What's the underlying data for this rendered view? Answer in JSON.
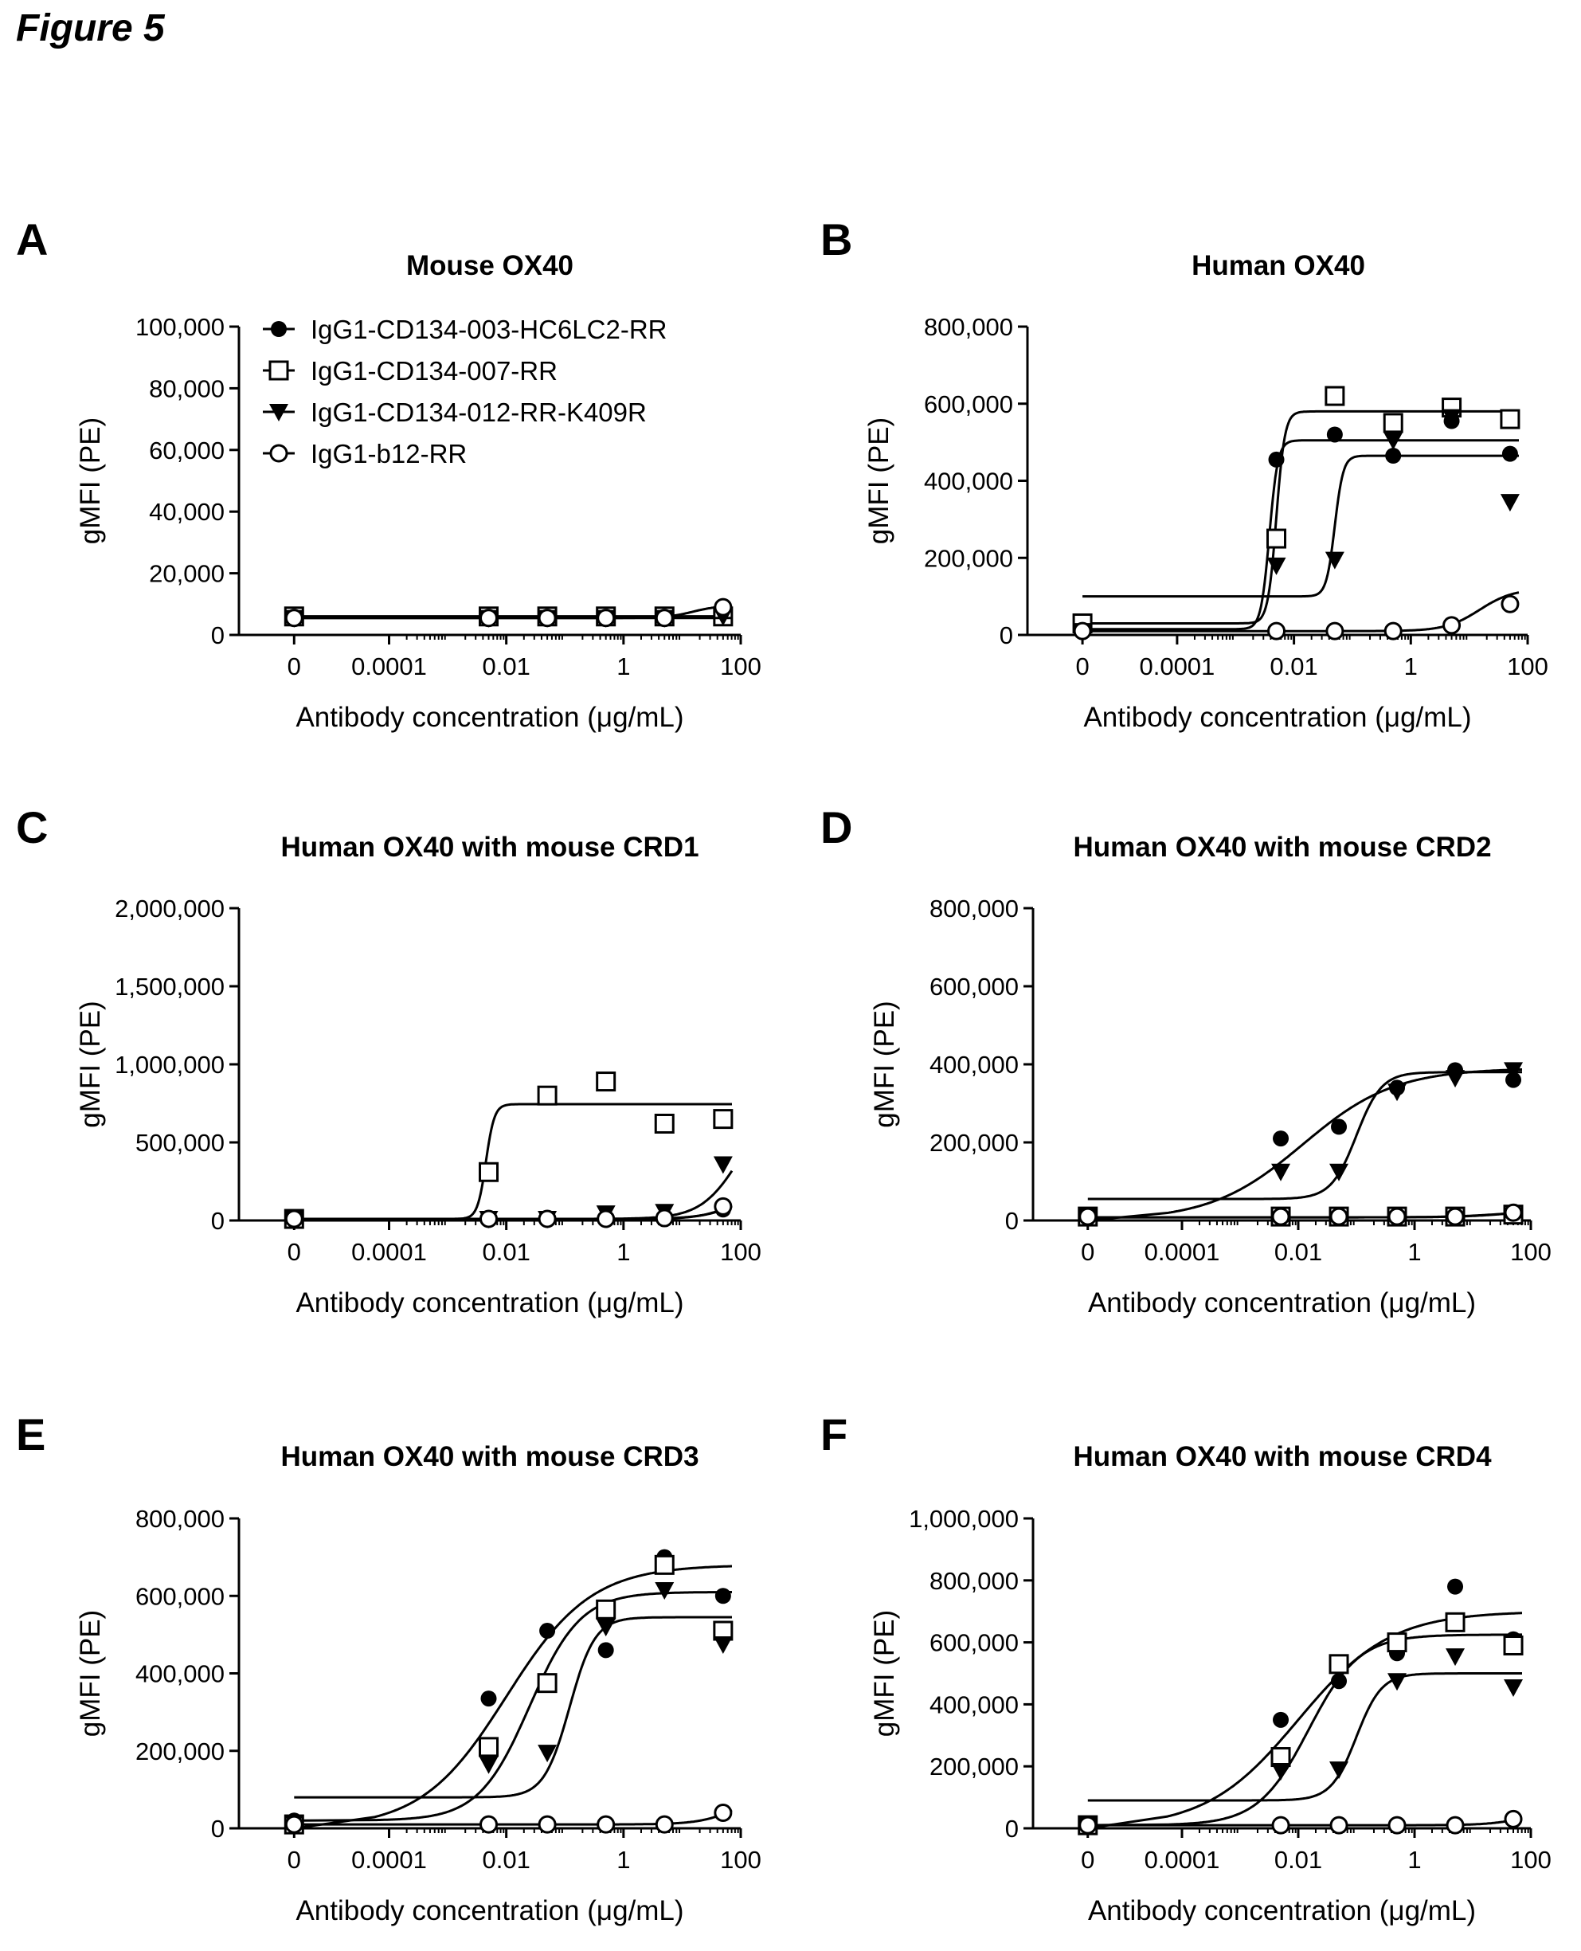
{
  "figure_title": "Figure 5",
  "series_styles": [
    {
      "name": "IgG1-CD134-003-HC6LC2-RR",
      "marker": "filled-circle"
    },
    {
      "name": "IgG1-CD134-007-RR",
      "marker": "open-square"
    },
    {
      "name": "IgG1-CD134-012-RR-K409R",
      "marker": "filled-triangle-down"
    },
    {
      "name": "IgG1-b12-RR",
      "marker": "open-circle"
    }
  ],
  "chart_data": [
    {
      "panel": "A",
      "type": "scatter",
      "title": "Mouse OX40",
      "xlabel": "Antibody concentration (μg/mL)",
      "ylabel": "gMFI (PE)",
      "x_scale": "log10 with zero point",
      "x_tick_labels": [
        "0",
        "0.0001",
        "0.01",
        "1",
        "100"
      ],
      "y_tick_labels": [
        "0",
        "20,000",
        "40,000",
        "60,000",
        "80,000",
        "100,000"
      ],
      "ylim": [
        0,
        100000
      ],
      "legend": "top-left",
      "x": [
        0,
        0.005,
        0.05,
        0.5,
        5,
        50
      ],
      "series": [
        {
          "name": "IgG1-CD134-003-HC6LC2-RR",
          "values": [
            6000,
            6000,
            6000,
            6000,
            6000,
            7000
          ],
          "fit": {
            "bottom": 6000,
            "top": 6000,
            "ec50": 1,
            "hill": 1
          }
        },
        {
          "name": "IgG1-CD134-007-RR",
          "values": [
            6000,
            6000,
            6000,
            6000,
            6000,
            6000
          ],
          "fit": {
            "bottom": 6000,
            "top": 6000,
            "ec50": 1,
            "hill": 1
          }
        },
        {
          "name": "IgG1-CD134-012-RR-K409R",
          "values": [
            5500,
            5500,
            5500,
            5500,
            5500,
            6000
          ],
          "fit": {
            "bottom": 5500,
            "top": 5500,
            "ec50": 1,
            "hill": 1
          }
        },
        {
          "name": "IgG1-b12-RR",
          "values": [
            5500,
            5500,
            5500,
            5500,
            5500,
            9000
          ],
          "fit": {
            "bottom": 5500,
            "top": 9500,
            "ec50": 15,
            "hill": 2
          }
        }
      ]
    },
    {
      "panel": "B",
      "type": "scatter",
      "title": "Human OX40",
      "xlabel": "Antibody concentration (μg/mL)",
      "ylabel": "gMFI (PE)",
      "x_scale": "log10 with zero point",
      "x_tick_labels": [
        "0",
        "0.0001",
        "0.01",
        "1",
        "100"
      ],
      "y_tick_labels": [
        "0",
        "200,000",
        "400,000",
        "600,000",
        "800,000"
      ],
      "ylim": [
        0,
        800000
      ],
      "x": [
        0,
        0.005,
        0.05,
        0.5,
        5,
        50
      ],
      "series": [
        {
          "name": "IgG1-CD134-003-HC6LC2-RR",
          "values": [
            10000,
            455000,
            520000,
            465000,
            555000,
            470000
          ],
          "fit": {
            "bottom": 15000,
            "top": 505000,
            "ec50": 0.0038,
            "hill": 6
          }
        },
        {
          "name": "IgG1-CD134-007-RR",
          "values": [
            30000,
            250000,
            620000,
            550000,
            590000,
            560000
          ],
          "fit": {
            "bottom": 30000,
            "top": 580000,
            "ec50": 0.005,
            "hill": 6
          }
        },
        {
          "name": "IgG1-CD134-012-RR-K409R",
          "values": [
            10000,
            180000,
            195000,
            505000,
            565000,
            345000
          ],
          "fit": {
            "bottom": 100000,
            "top": 465000,
            "ec50": 0.05,
            "hill": 6
          }
        },
        {
          "name": "IgG1-b12-RR",
          "values": [
            10000,
            10000,
            10000,
            10000,
            25000,
            80000
          ],
          "fit": {
            "bottom": 10000,
            "top": 120000,
            "ec50": 15,
            "hill": 1.5
          }
        }
      ]
    },
    {
      "panel": "C",
      "type": "scatter",
      "title": "Human OX40 with mouse CRD1",
      "xlabel": "Antibody concentration (μg/mL)",
      "ylabel": "gMFI (PE)",
      "x_scale": "log10 with zero point",
      "x_tick_labels": [
        "0",
        "0.0001",
        "0.01",
        "1",
        "100"
      ],
      "y_tick_labels": [
        "0",
        "500,000",
        "1,000,000",
        "1,500,000",
        "2,000,000"
      ],
      "ylim": [
        0,
        2000000
      ],
      "x": [
        0,
        0.005,
        0.05,
        0.5,
        5,
        50
      ],
      "series": [
        {
          "name": "IgG1-CD134-003-HC6LC2-RR",
          "values": [
            10000,
            10000,
            10000,
            10000,
            15000,
            70000
          ],
          "fit": {
            "bottom": 10000,
            "top": 200000,
            "ec50": 80,
            "hill": 1.5
          }
        },
        {
          "name": "IgG1-CD134-007-RR",
          "values": [
            10000,
            310000,
            800000,
            890000,
            620000,
            650000
          ],
          "fit": {
            "bottom": 10000,
            "top": 745000,
            "ec50": 0.0045,
            "hill": 6
          }
        },
        {
          "name": "IgG1-CD134-012-RR-K409R",
          "values": [
            10000,
            10000,
            10000,
            45000,
            55000,
            360000
          ],
          "fit": {
            "bottom": 10000,
            "top": 800000,
            "ec50": 100,
            "hill": 1.3
          }
        },
        {
          "name": "IgG1-b12-RR",
          "values": [
            10000,
            10000,
            10000,
            10000,
            15000,
            90000
          ],
          "fit": {
            "bottom": 10000,
            "top": 250000,
            "ec50": 120,
            "hill": 1.3
          }
        }
      ]
    },
    {
      "panel": "D",
      "type": "scatter",
      "title": "Human OX40 with mouse CRD2",
      "xlabel": "Antibody concentration (μg/mL)",
      "ylabel": "gMFI (PE)",
      "x_scale": "log10 with zero point",
      "x_tick_labels": [
        "0",
        "0.0001",
        "0.01",
        "1",
        "100"
      ],
      "y_tick_labels": [
        "0",
        "200,000",
        "400,000",
        "600,000",
        "800,000"
      ],
      "ylim": [
        0,
        800000
      ],
      "x": [
        0,
        0.005,
        0.05,
        0.5,
        5,
        50
      ],
      "series": [
        {
          "name": "IgG1-CD134-003-HC6LC2-RR",
          "values": [
            10000,
            210000,
            240000,
            340000,
            385000,
            360000
          ],
          "fit": {
            "bottom": 0,
            "top": 390000,
            "ec50": 0.012,
            "hill": 0.55
          }
        },
        {
          "name": "IgG1-CD134-007-RR",
          "values": [
            10000,
            10000,
            10000,
            10000,
            10000,
            15000
          ],
          "fit": {
            "bottom": 8000,
            "top": 30000,
            "ec50": 50,
            "hill": 1
          }
        },
        {
          "name": "IgG1-CD134-012-RR-K409R",
          "values": [
            10000,
            125000,
            125000,
            330000,
            365000,
            385000
          ],
          "fit": {
            "bottom": 55000,
            "top": 380000,
            "ec50": 0.1,
            "hill": 2
          }
        },
        {
          "name": "IgG1-b12-RR",
          "values": [
            10000,
            10000,
            10000,
            10000,
            10000,
            20000
          ],
          "fit": {
            "bottom": 8000,
            "top": 25000,
            "ec50": 30,
            "hill": 1
          }
        }
      ]
    },
    {
      "panel": "E",
      "type": "scatter",
      "title": "Human OX40 with mouse CRD3",
      "xlabel": "Antibody concentration (μg/mL)",
      "ylabel": "gMFI (PE)",
      "x_scale": "log10 with zero point",
      "x_tick_labels": [
        "0",
        "0.0001",
        "0.01",
        "1",
        "100"
      ],
      "y_tick_labels": [
        "0",
        "200,000",
        "400,000",
        "600,000",
        "800,000"
      ],
      "ylim": [
        0,
        800000
      ],
      "x": [
        0,
        0.005,
        0.05,
        0.5,
        5,
        50
      ],
      "series": [
        {
          "name": "IgG1-CD134-003-HC6LC2-RR",
          "values": [
            20000,
            335000,
            510000,
            460000,
            700000,
            600000
          ],
          "fit": {
            "bottom": 0,
            "top": 680000,
            "ec50": 0.01,
            "hill": 0.6
          }
        },
        {
          "name": "IgG1-CD134-007-RR",
          "values": [
            10000,
            210000,
            375000,
            565000,
            680000,
            510000
          ],
          "fit": {
            "bottom": 20000,
            "top": 610000,
            "ec50": 0.025,
            "hill": 1
          }
        },
        {
          "name": "IgG1-CD134-012-RR-K409R",
          "values": [
            15000,
            165000,
            195000,
            520000,
            615000,
            475000
          ],
          "fit": {
            "bottom": 80000,
            "top": 545000,
            "ec50": 0.12,
            "hill": 2
          }
        },
        {
          "name": "IgG1-b12-RR",
          "values": [
            10000,
            10000,
            10000,
            10000,
            10000,
            40000
          ],
          "fit": {
            "bottom": 10000,
            "top": 120000,
            "ec50": 120,
            "hill": 1.3
          }
        }
      ]
    },
    {
      "panel": "F",
      "type": "scatter",
      "title": "Human OX40 with mouse CRD4",
      "xlabel": "Antibody concentration (μg/mL)",
      "ylabel": "gMFI (PE)",
      "x_scale": "log10 with zero point",
      "x_tick_labels": [
        "0",
        "0.0001",
        "0.01",
        "1",
        "100"
      ],
      "y_tick_labels": [
        "0",
        "200,000",
        "400,000",
        "600,000",
        "800,000",
        "1,000,000"
      ],
      "ylim": [
        0,
        1000000
      ],
      "x": [
        0,
        0.005,
        0.05,
        0.5,
        5,
        50
      ],
      "series": [
        {
          "name": "IgG1-CD134-003-HC6LC2-RR",
          "values": [
            10000,
            350000,
            475000,
            565000,
            780000,
            610000
          ],
          "fit": {
            "bottom": 0,
            "top": 700000,
            "ec50": 0.01,
            "hill": 0.55
          }
        },
        {
          "name": "IgG1-CD134-007-RR",
          "values": [
            10000,
            230000,
            530000,
            600000,
            665000,
            590000
          ],
          "fit": {
            "bottom": 10000,
            "top": 625000,
            "ec50": 0.015,
            "hill": 1
          }
        },
        {
          "name": "IgG1-CD134-012-RR-K409R",
          "values": [
            10000,
            185000,
            190000,
            475000,
            555000,
            455000
          ],
          "fit": {
            "bottom": 90000,
            "top": 500000,
            "ec50": 0.1,
            "hill": 2
          }
        },
        {
          "name": "IgG1-b12-RR",
          "values": [
            10000,
            10000,
            10000,
            10000,
            10000,
            30000
          ],
          "fit": {
            "bottom": 10000,
            "top": 80000,
            "ec50": 120,
            "hill": 1.3
          }
        }
      ]
    }
  ]
}
